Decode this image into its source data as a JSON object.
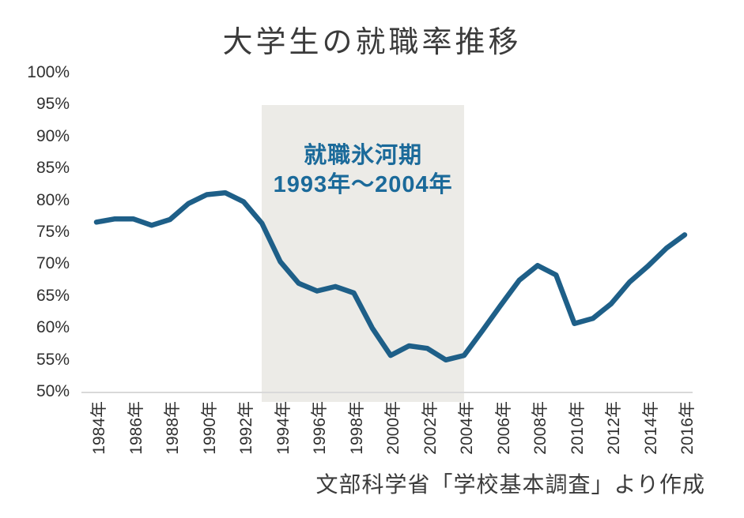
{
  "title": "大学生の就職率推移",
  "source_note": "文部科学省「学校基本調査」より作成",
  "chart_data": {
    "type": "line",
    "title": "大学生の就職率推移",
    "xlabel": "",
    "ylabel": "",
    "x": [
      1984,
      1985,
      1986,
      1987,
      1988,
      1989,
      1990,
      1991,
      1992,
      1993,
      1994,
      1995,
      1996,
      1997,
      1998,
      1999,
      2000,
      2001,
      2002,
      2003,
      2004,
      2005,
      2006,
      2007,
      2008,
      2009,
      2010,
      2011,
      2012,
      2013,
      2014,
      2015,
      2016
    ],
    "series": [
      {
        "name": "就職率",
        "values": [
          76.7,
          77.2,
          77.2,
          76.2,
          77.1,
          79.6,
          81.0,
          81.3,
          79.9,
          76.5,
          70.5,
          67.1,
          65.9,
          66.6,
          65.6,
          60.1,
          55.8,
          57.3,
          56.9,
          55.1,
          55.8,
          59.7,
          63.7,
          67.6,
          69.9,
          68.4,
          60.8,
          61.6,
          63.9,
          67.3,
          69.8,
          72.6,
          74.7
        ]
      }
    ],
    "ylim": [
      50,
      100
    ],
    "ytick_step": 5,
    "ytick_suffix": "%",
    "xtick_step": 2,
    "xtick_suffix": "年",
    "grid": false,
    "legend": "none",
    "line_color": "#1e5f88",
    "axis_line_color": "#d9d9d9",
    "annotation": {
      "line1": "就職氷河期",
      "line2": "1993年～2004年",
      "x_start": 1993,
      "x_end": 2004,
      "y_top": 95,
      "fill_color": "#ecebe7",
      "text_color": "#1b6a9a"
    }
  }
}
